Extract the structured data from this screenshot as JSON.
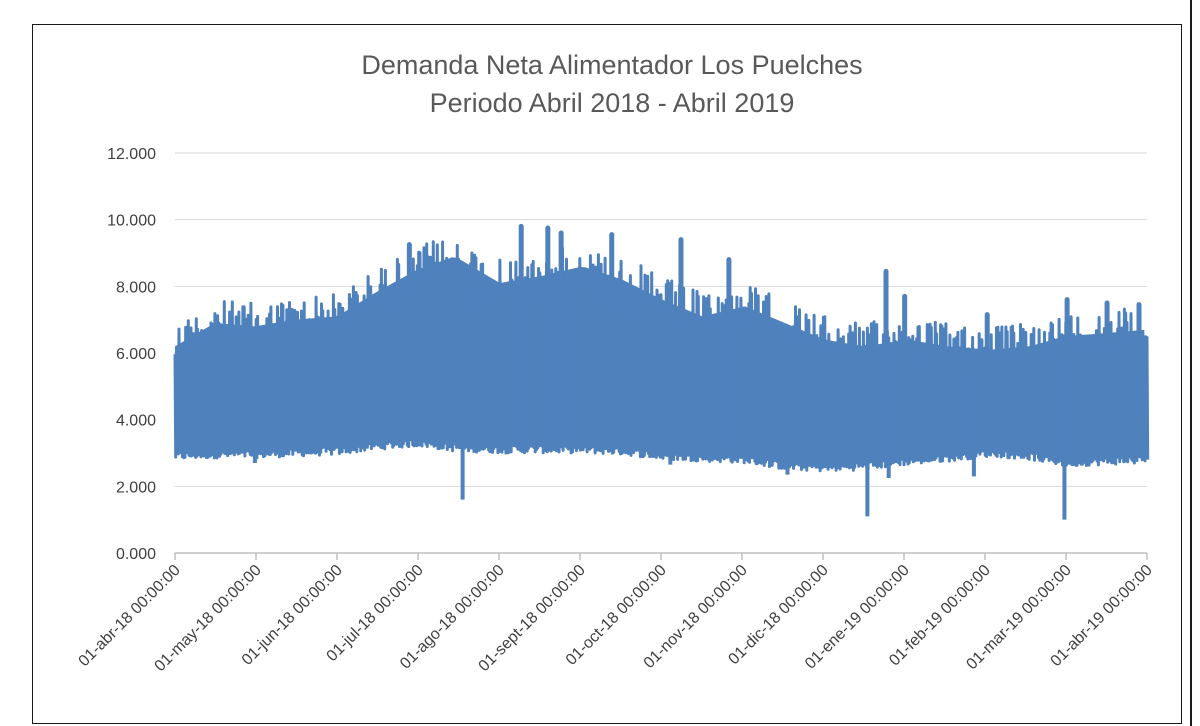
{
  "chart_data": {
    "type": "line",
    "title": [
      "Demanda Neta Alimentador Los Puelches",
      "Periodo Abril 2018 - Abril 2019"
    ],
    "xlabel": "",
    "ylabel": "",
    "ylim": [
      0,
      12000
    ],
    "y_ticks": [
      0,
      2000,
      4000,
      6000,
      8000,
      10000,
      12000
    ],
    "y_tick_labels": [
      "0.000",
      "2.000",
      "4.000",
      "6.000",
      "8.000",
      "10.000",
      "12.000"
    ],
    "x_tick_labels": [
      "01-abr-18 00:00:00",
      "01-may-18 00:00:00",
      "01-jun-18 00:00:00",
      "01-jul-18 00:00:00",
      "01-ago-18 00:00:00",
      "01-sept-18 00:00:00",
      "01-oct-18 00:00:00",
      "01-nov-18 00:00:00",
      "01-dic-18 00:00:00",
      "01-ene-19 00:00:00",
      "01-feb-19 00:00:00",
      "01-mar-19 00:00:00",
      "01-abr-19 00:00:00"
    ],
    "grid": true,
    "series": [
      {
        "name": "Demanda Neta",
        "color": "#4f81bd",
        "envelope_x_day": [
          0,
          15,
          30,
          45,
          61,
          75,
          91,
          105,
          122,
          137,
          153,
          168,
          183,
          198,
          214,
          229,
          244,
          259,
          275,
          290,
          306,
          321,
          334,
          350,
          365
        ],
        "envelope_max": [
          6900,
          7600,
          7500,
          7700,
          7800,
          8500,
          9200,
          9600,
          8800,
          9000,
          9300,
          8900,
          8300,
          7800,
          8100,
          7600,
          7100,
          6900,
          7100,
          6900,
          6800,
          6900,
          7200,
          7300,
          7400
        ],
        "envelope_min": [
          2800,
          2850,
          2850,
          2900,
          2950,
          3100,
          3200,
          3050,
          3000,
          3000,
          3000,
          2950,
          2800,
          2750,
          2700,
          2500,
          2450,
          2500,
          2650,
          2750,
          2900,
          2800,
          2600,
          2650,
          2700
        ],
        "peaks": [
          [
            130,
            9800
          ],
          [
            140,
            9750
          ],
          [
            88,
            9250
          ],
          [
            164,
            9550
          ],
          [
            145,
            9600
          ],
          [
            190,
            9400
          ],
          [
            208,
            8800
          ],
          [
            267,
            8450
          ],
          [
            274,
            7700
          ],
          [
            305,
            7150
          ],
          [
            335,
            7600
          ],
          [
            350,
            7500
          ],
          [
            362,
            7450
          ]
        ],
        "dips": [
          [
            108,
            1600
          ],
          [
            260,
            1100
          ],
          [
            334,
            1000
          ],
          [
            30,
            2700
          ],
          [
            186,
            2650
          ],
          [
            230,
            2350
          ],
          [
            268,
            2250
          ],
          [
            300,
            2300
          ]
        ],
        "last_value": 5100
      }
    ]
  }
}
